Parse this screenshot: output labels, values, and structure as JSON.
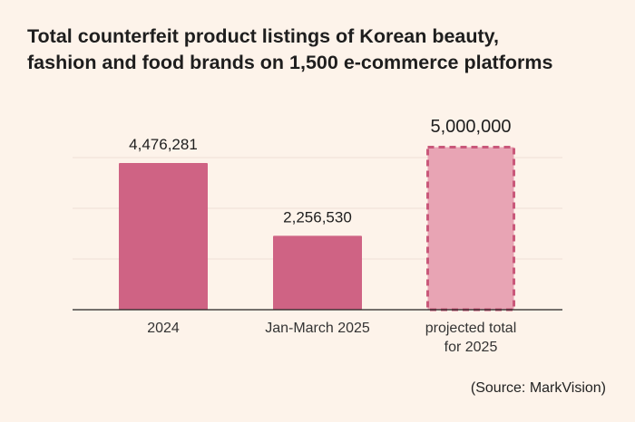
{
  "title_lines": [
    "Total counterfeit product listings of Korean beauty,",
    "fashion and food brands on 1,500 e-commerce platforms"
  ],
  "source": "(Source: MarkVision)",
  "colors": {
    "background": "#fdf3ea",
    "bar_actual": "#cf6384",
    "bar_projected_fill": "#e8a4b4",
    "bar_projected_border": "#c9587a",
    "grid": "#eedfd6",
    "axis": "#222222"
  },
  "chart_data": {
    "type": "bar",
    "categories": [
      [
        "2024"
      ],
      [
        "Jan-March 2025"
      ],
      [
        "projected total",
        "for 2025"
      ]
    ],
    "values": [
      4476281,
      2256530,
      5000000
    ],
    "value_labels": [
      "4,476,281",
      "2,256,530",
      "5,000,000"
    ],
    "projected": [
      false,
      false,
      true
    ],
    "ylim": [
      0,
      5000000
    ],
    "grid": true,
    "title": "Total counterfeit product listings of Korean beauty, fashion and food brands on 1,500 e-commerce platforms",
    "xlabel": "",
    "ylabel": ""
  }
}
